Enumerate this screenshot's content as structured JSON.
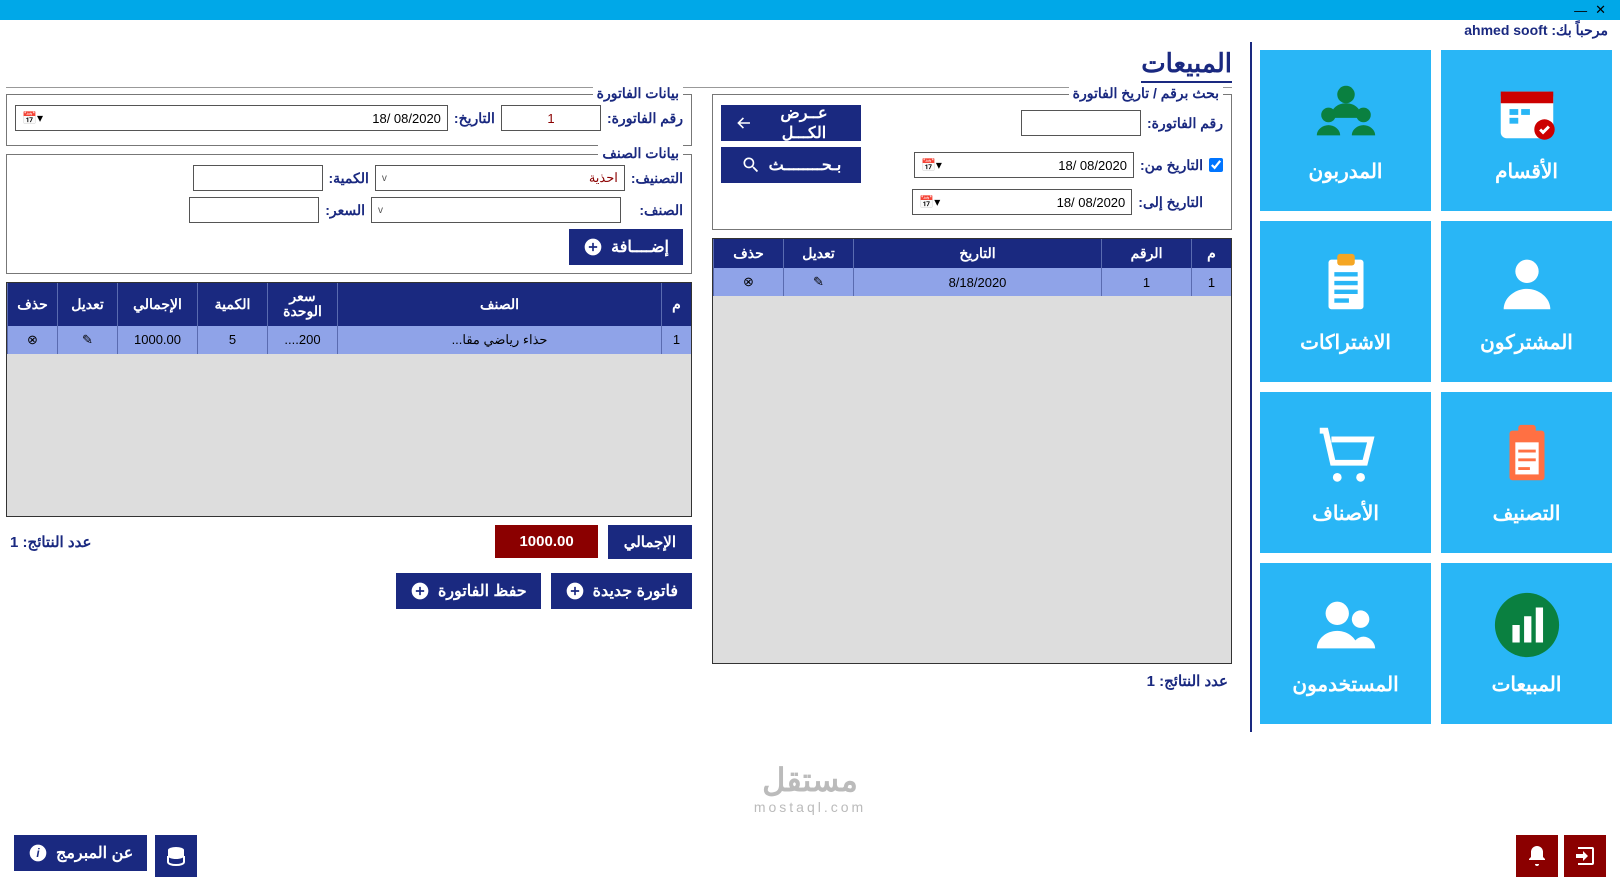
{
  "colors": {
    "primary": "#1a2980",
    "accent": "#29b6f6",
    "danger": "#8b0000",
    "titlebar": "#00a8e8",
    "row": "#8fa3e8",
    "gridbg": "#dddddd"
  },
  "welcome": {
    "prefix": "مرحباً بك: ",
    "user": "ahmed sooft"
  },
  "page_title": "المبيعات",
  "tiles": [
    {
      "label": "الأقسام",
      "icon": "calendar"
    },
    {
      "label": "المدربون",
      "icon": "trainers"
    },
    {
      "label": "المشتركون",
      "icon": "person"
    },
    {
      "label": "الاشتراكات",
      "icon": "clipboard"
    },
    {
      "label": "التصنيف",
      "icon": "clipboard-orange"
    },
    {
      "label": "الأصناف",
      "icon": "cart"
    },
    {
      "label": "المبيعات",
      "icon": "chart"
    },
    {
      "label": "المستخدمون",
      "icon": "users"
    }
  ],
  "search": {
    "legend": "بحث برقم / تاريخ الفاتورة",
    "invoice_no_lbl": "رقم الفاتورة:",
    "invoice_no_val": "",
    "show_all": "عــرض الكـــل",
    "date_from_lbl": "التاريخ من:",
    "date_to_lbl": "التاريخ إلى:",
    "date_from": "18/ 08/2020",
    "date_to": "18/ 08/2020",
    "search_btn": "بـحــــــــث"
  },
  "search_grid": {
    "headers": {
      "m": "م",
      "no": "الرقم",
      "date": "التاريخ",
      "edit": "تعديل",
      "del": "حذف"
    },
    "rows": [
      {
        "m": "1",
        "no": "1",
        "date": "8/18/2020"
      }
    ],
    "count_lbl": "عدد النتائج: ",
    "count": "1"
  },
  "invoice": {
    "legend": "بيانات الفاتورة",
    "no_lbl": "رقم الفاتورة:",
    "no_val": "1",
    "date_lbl": "التاريخ:",
    "date_val": "18/ 08/2020"
  },
  "item": {
    "legend": "بيانات الصنف",
    "class_lbl": "التصنيف:",
    "class_val": "احذية",
    "qty_lbl": "الكمية:",
    "qty_val": "",
    "name_lbl": "الصنف:",
    "name_val": "",
    "price_lbl": "السعر:",
    "price_val": "",
    "add_btn": "إضــــافة"
  },
  "items_grid": {
    "headers": {
      "m": "م",
      "name": "الصنف",
      "unit": "سعر الوحدة",
      "qty": "الكمية",
      "total": "الإجمالي",
      "edit": "تعديل",
      "del": "حذف"
    },
    "rows": [
      {
        "m": "1",
        "name": "حذاء رياضي مقا...",
        "unit": "200....",
        "qty": "5",
        "total": "1000.00"
      }
    ]
  },
  "totals": {
    "lbl": "الإجمالي",
    "val": "1000.00",
    "count_lbl": "عدد النتائج: ",
    "count": "1"
  },
  "actions": {
    "new_invoice": "فاتورة جديدة",
    "save_invoice": "حفظ الفاتورة",
    "about": "عن المبرمج"
  },
  "watermark": {
    "main": "مستقل",
    "sub": "mostaql.com"
  }
}
